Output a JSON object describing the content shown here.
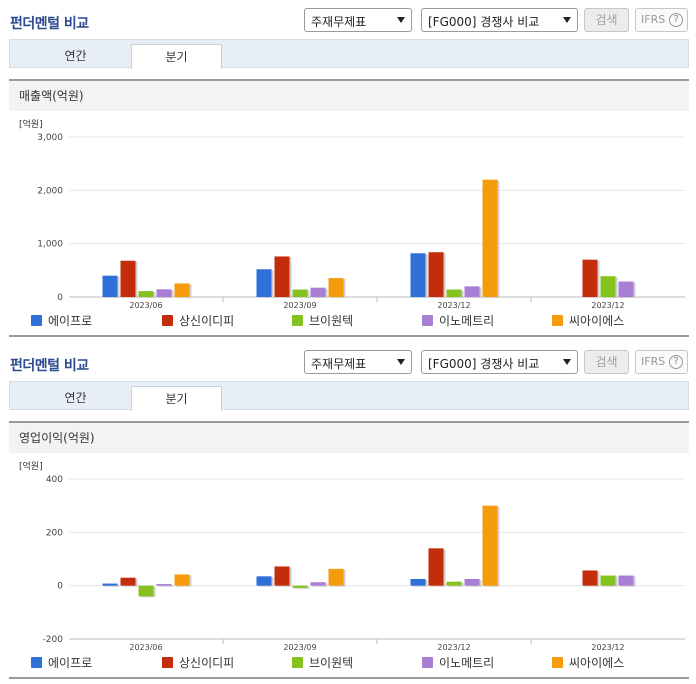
{
  "panels": [
    {
      "title": "펀더멘털 비교",
      "statement_select": "주재무제표",
      "peer_select": "[FG000] 경쟁사 비교",
      "search_label": "검색",
      "ifrs_label": "IFRS",
      "ifrs_help": "?",
      "tabs": [
        "연간",
        "분기"
      ],
      "active_tab": "분기",
      "chart_title": "매출액(억원)",
      "unit_label": "[억원]",
      "chart_data": {
        "type": "bar",
        "categories": [
          "2023/06",
          "2023/09",
          "2023/12",
          "2023/12"
        ],
        "yticks": [
          "3,000",
          "2,000",
          "1,000",
          "0"
        ],
        "ylim": [
          0,
          3000
        ],
        "series": [
          {
            "name": "에이프로",
            "color": "#2f6fd8",
            "values": [
              400,
              520,
              820,
              null
            ]
          },
          {
            "name": "상신이디피",
            "color": "#c42d0c",
            "values": [
              680,
              760,
              840,
              700
            ]
          },
          {
            "name": "브이원텍",
            "color": "#86c21d",
            "values": [
              110,
              140,
              140,
              390
            ]
          },
          {
            "name": "이노메트리",
            "color": "#a97fd6",
            "values": [
              145,
              175,
              200,
              290
            ]
          },
          {
            "name": "씨아이에스",
            "color": "#f59c0c",
            "values": [
              255,
              355,
              2200,
              null
            ]
          }
        ]
      }
    },
    {
      "title": "펀더멘털 비교",
      "statement_select": "주재무제표",
      "peer_select": "[FG000] 경쟁사 비교",
      "search_label": "검색",
      "ifrs_label": "IFRS",
      "ifrs_help": "?",
      "tabs": [
        "연간",
        "분기"
      ],
      "active_tab": "분기",
      "chart_title": "영업이익(억원)",
      "unit_label": "[억원]",
      "chart_data": {
        "type": "bar",
        "categories": [
          "2023/06",
          "2023/09",
          "2023/12",
          "2023/12"
        ],
        "yticks": [
          "400",
          "200",
          "0",
          "-200"
        ],
        "ylim": [
          -200,
          400
        ],
        "series": [
          {
            "name": "에이프로",
            "color": "#2f6fd8",
            "values": [
              8,
              35,
              25,
              null
            ]
          },
          {
            "name": "상신이디피",
            "color": "#c42d0c",
            "values": [
              30,
              72,
              140,
              57
            ]
          },
          {
            "name": "브이원텍",
            "color": "#86c21d",
            "values": [
              -40,
              -8,
              15,
              38
            ]
          },
          {
            "name": "이노메트리",
            "color": "#a97fd6",
            "values": [
              6,
              13,
              25,
              38
            ]
          },
          {
            "name": "씨아이에스",
            "color": "#f59c0c",
            "values": [
              42,
              63,
              300,
              null
            ]
          }
        ]
      }
    }
  ]
}
